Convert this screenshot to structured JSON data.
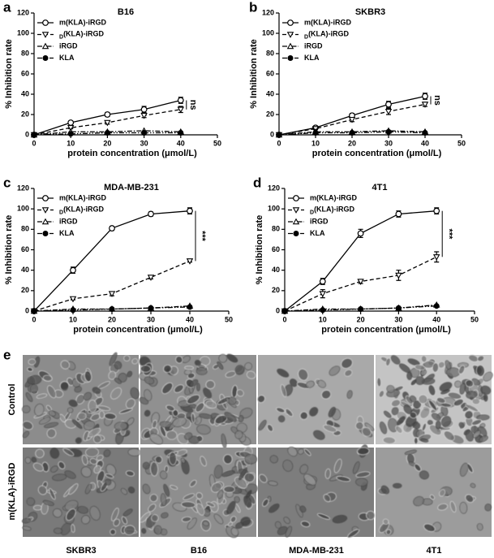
{
  "chart_data": [
    {
      "type": "line",
      "panel": "a",
      "title": "B16",
      "xlabel": "protein concentration (μmol/L)",
      "ylabel": "% Inhibition rate",
      "x": [
        0,
        10,
        20,
        30,
        40
      ],
      "xlim": [
        0,
        50
      ],
      "xticks": [
        0,
        10,
        20,
        30,
        40,
        50
      ],
      "ylim": [
        0,
        120
      ],
      "yticks": [
        0,
        20,
        40,
        60,
        80,
        100,
        120
      ],
      "legend": "upper left",
      "annotation": "ns",
      "series": [
        {
          "name": "m(KLA)-iRGD",
          "color": "#000000",
          "marker": "circle-open",
          "dash": "solid",
          "values": [
            0,
            12,
            20,
            25,
            34
          ],
          "errors": [
            0,
            1.5,
            2,
            3,
            3
          ]
        },
        {
          "name": "D(KLA)-iRGD",
          "color": "#000000",
          "marker": "triangle-down-open",
          "dash": "dashed",
          "values": [
            0,
            7,
            12,
            19,
            25
          ],
          "errors": [
            0,
            1,
            1.5,
            2,
            3
          ]
        },
        {
          "name": "iRGD",
          "color": "#000000",
          "marker": "triangle-up-open",
          "dash": "dashdot",
          "values": [
            0,
            3,
            3,
            4,
            3
          ]
        },
        {
          "name": "KLA",
          "color": "#000000",
          "marker": "circle-filled",
          "dash": "dashdotdot",
          "values": [
            0,
            1,
            2,
            2,
            2
          ]
        }
      ]
    },
    {
      "type": "line",
      "panel": "b",
      "title": "SKBR3",
      "xlabel": "protein concentration (μmol/L)",
      "ylabel": "% Inhibition rate",
      "x": [
        0,
        10,
        20,
        30,
        40
      ],
      "xlim": [
        0,
        50
      ],
      "xticks": [
        0,
        10,
        20,
        30,
        40,
        50
      ],
      "ylim": [
        0,
        120
      ],
      "yticks": [
        0,
        20,
        40,
        60,
        80,
        100,
        120
      ],
      "legend": "upper left",
      "annotation": "ns",
      "series": [
        {
          "name": "m(KLA)-iRGD",
          "color": "#000000",
          "marker": "circle-open",
          "dash": "solid",
          "values": [
            0,
            7,
            19,
            30,
            38
          ],
          "errors": [
            0,
            1.5,
            2,
            3,
            3
          ]
        },
        {
          "name": "D(KLA)-iRGD",
          "color": "#000000",
          "marker": "triangle-down-open",
          "dash": "dashed",
          "values": [
            0,
            6,
            15,
            23,
            30
          ],
          "errors": [
            0,
            1,
            2,
            3,
            2
          ]
        },
        {
          "name": "iRGD",
          "color": "#000000",
          "marker": "triangle-up-open",
          "dash": "dashdot",
          "values": [
            0,
            3,
            3,
            4,
            3
          ]
        },
        {
          "name": "KLA",
          "color": "#000000",
          "marker": "circle-filled",
          "dash": "dashdotdot",
          "values": [
            0,
            2,
            2,
            3,
            2
          ]
        }
      ]
    },
    {
      "type": "line",
      "panel": "c",
      "title": "MDA-MB-231",
      "xlabel": "protein concentration (μmol/L)",
      "ylabel": "% Inhibition rate",
      "x": [
        0,
        10,
        20,
        30,
        40
      ],
      "xlim": [
        0,
        50
      ],
      "xticks": [
        0,
        10,
        20,
        30,
        40,
        50
      ],
      "ylim": [
        0,
        120
      ],
      "yticks": [
        0,
        20,
        40,
        60,
        80,
        100,
        120
      ],
      "legend": "upper left",
      "annotation": "***",
      "series": [
        {
          "name": "m(KLA)-iRGD",
          "color": "#000000",
          "marker": "circle-open",
          "dash": "solid",
          "values": [
            0,
            40,
            81,
            95,
            98
          ],
          "errors": [
            0,
            3,
            2,
            2,
            3
          ]
        },
        {
          "name": "D(KLA)-iRGD",
          "color": "#000000",
          "marker": "triangle-down-open",
          "dash": "dashed",
          "values": [
            0,
            12,
            17,
            33,
            49
          ],
          "errors": [
            0,
            1,
            2,
            1.5,
            1
          ]
        },
        {
          "name": "iRGD",
          "color": "#000000",
          "marker": "triangle-up-open",
          "dash": "dashdot",
          "values": [
            0,
            2,
            2,
            3,
            5
          ]
        },
        {
          "name": "KLA",
          "color": "#000000",
          "marker": "circle-filled",
          "dash": "dashdotdot",
          "values": [
            0,
            1,
            2,
            3,
            4
          ]
        }
      ]
    },
    {
      "type": "line",
      "panel": "d",
      "title": "4T1",
      "xlabel": "protein concentration (μmol/L)",
      "ylabel": "% Inhibition rate",
      "x": [
        0,
        10,
        20,
        30,
        40
      ],
      "xlim": [
        0,
        50
      ],
      "xticks": [
        0,
        10,
        20,
        30,
        40,
        50
      ],
      "ylim": [
        0,
        120
      ],
      "yticks": [
        0,
        20,
        40,
        60,
        80,
        100,
        120
      ],
      "legend": "upper left",
      "annotation": "***",
      "series": [
        {
          "name": "m(KLA)-iRGD",
          "color": "#000000",
          "marker": "circle-open",
          "dash": "solid",
          "values": [
            0,
            29,
            76,
            95,
            98
          ],
          "errors": [
            0,
            3,
            4,
            3,
            3
          ]
        },
        {
          "name": "D(KLA)-iRGD",
          "color": "#000000",
          "marker": "triangle-down-open",
          "dash": "dashed",
          "values": [
            0,
            17,
            29,
            35,
            53
          ],
          "errors": [
            0,
            4,
            2,
            5,
            5
          ]
        },
        {
          "name": "iRGD",
          "color": "#000000",
          "marker": "triangle-up-open",
          "dash": "dashdot",
          "values": [
            0,
            2,
            2,
            3,
            6
          ]
        },
        {
          "name": "KLA",
          "color": "#000000",
          "marker": "circle-filled",
          "dash": "dashdotdot",
          "values": [
            0,
            1,
            2,
            3,
            5
          ]
        }
      ]
    }
  ],
  "figure": {
    "panel_e": {
      "label": "e",
      "rows": [
        "Control",
        "m(KLA)-iRGD"
      ],
      "columns": [
        "SKBR3",
        "B16",
        "MDA-MB-231",
        "4T1"
      ]
    }
  }
}
